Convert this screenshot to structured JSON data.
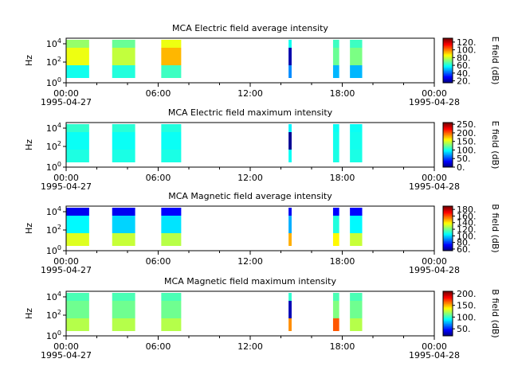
{
  "chart_data": [
    {
      "type": "heatmap",
      "title": "MCA  Electric field average intensity",
      "ylabel": "Hz",
      "y_ticks": [
        "10^4",
        "10^2",
        "10^0"
      ],
      "x_ticks": [
        "00:00",
        "06:00",
        "12:00",
        "18:00",
        "00:00"
      ],
      "x_date_left": "1995-04-27",
      "x_date_right": "1995-04-28",
      "colorbar_label": "E field (dB)",
      "colorbar_ticks": [
        "120.",
        "100.",
        "80.",
        "60.",
        "40.",
        "20."
      ],
      "colorbar_range": [
        15,
        130
      ],
      "segments": [
        [
          0.0,
          1.5
        ],
        [
          3.0,
          4.5
        ],
        [
          6.2,
          7.5
        ],
        [
          14.5,
          14.7
        ],
        [
          17.4,
          17.8
        ],
        [
          18.5,
          19.3
        ]
      ],
      "levels": [
        [
          75,
          85,
          60
        ],
        [
          70,
          80,
          62
        ],
        [
          85,
          95,
          65
        ],
        [
          60,
          20,
          45
        ],
        [
          65,
          70,
          50
        ],
        [
          65,
          72,
          50
        ]
      ]
    },
    {
      "type": "heatmap",
      "title": "MCA  Electric field maximum intensity",
      "ylabel": "Hz",
      "y_ticks": [
        "10^4",
        "10^2",
        "10^0"
      ],
      "x_ticks": [
        "00:00",
        "06:00",
        "12:00",
        "18:00",
        "00:00"
      ],
      "x_date_left": "1995-04-27",
      "x_date_right": "1995-04-28",
      "colorbar_label": "E field (dB)",
      "colorbar_ticks": [
        "250.",
        "200.",
        "150.",
        "100.",
        "50.",
        "0."
      ],
      "colorbar_range": [
        0,
        260
      ],
      "segments": [
        [
          0.0,
          1.5
        ],
        [
          3.0,
          4.5
        ],
        [
          6.2,
          7.5
        ],
        [
          14.5,
          14.7
        ],
        [
          17.4,
          17.8
        ],
        [
          18.5,
          19.3
        ]
      ],
      "levels": [
        [
          110,
          100,
          105
        ],
        [
          108,
          100,
          104
        ],
        [
          106,
          100,
          104
        ],
        [
          95,
          5,
          100
        ],
        [
          100,
          102,
          104
        ],
        [
          100,
          102,
          104
        ]
      ]
    },
    {
      "type": "heatmap",
      "title": "MCA  Magnetic field average intensity",
      "ylabel": "Hz",
      "y_ticks": [
        "10^4",
        "10^2",
        "10^0"
      ],
      "x_ticks": [
        "00:00",
        "06:00",
        "12:00",
        "18:00",
        "00:00"
      ],
      "x_date_left": "1995-04-27",
      "x_date_right": "1995-04-28",
      "colorbar_label": "B field (dB)",
      "colorbar_ticks": [
        "180.",
        "160.",
        "140.",
        "120.",
        "100.",
        "80.",
        "60."
      ],
      "colorbar_range": [
        55,
        190
      ],
      "segments": [
        [
          0.0,
          1.5
        ],
        [
          3.0,
          4.5
        ],
        [
          6.2,
          7.5
        ],
        [
          14.5,
          14.7
        ],
        [
          17.4,
          17.8
        ],
        [
          18.5,
          19.3
        ]
      ],
      "levels": [
        [
          70,
          105,
          135
        ],
        [
          70,
          100,
          132
        ],
        [
          72,
          102,
          130
        ],
        [
          70,
          95,
          150
        ],
        [
          72,
          110,
          140
        ],
        [
          72,
          105,
          132
        ]
      ]
    },
    {
      "type": "heatmap",
      "title": "MCA  Magnetic field maximum intensity",
      "ylabel": "Hz",
      "y_ticks": [
        "10^4",
        "10^2",
        "10^0"
      ],
      "x_ticks": [
        "00:00",
        "06:00",
        "12:00",
        "18:00",
        "00:00"
      ],
      "x_date_left": "1995-04-27",
      "x_date_right": "1995-04-28",
      "colorbar_label": "B field (dB)",
      "colorbar_ticks": [
        "200.",
        "150.",
        "100.",
        "50."
      ],
      "colorbar_range": [
        20,
        210
      ],
      "segments": [
        [
          0.0,
          1.5
        ],
        [
          3.0,
          4.5
        ],
        [
          6.2,
          7.5
        ],
        [
          14.5,
          14.7
        ],
        [
          17.4,
          17.8
        ],
        [
          18.5,
          19.3
        ]
      ],
      "levels": [
        [
          105,
          112,
          125
        ],
        [
          105,
          112,
          125
        ],
        [
          105,
          112,
          125
        ],
        [
          100,
          30,
          160
        ],
        [
          105,
          115,
          170
        ],
        [
          105,
          112,
          125
        ]
      ]
    }
  ]
}
